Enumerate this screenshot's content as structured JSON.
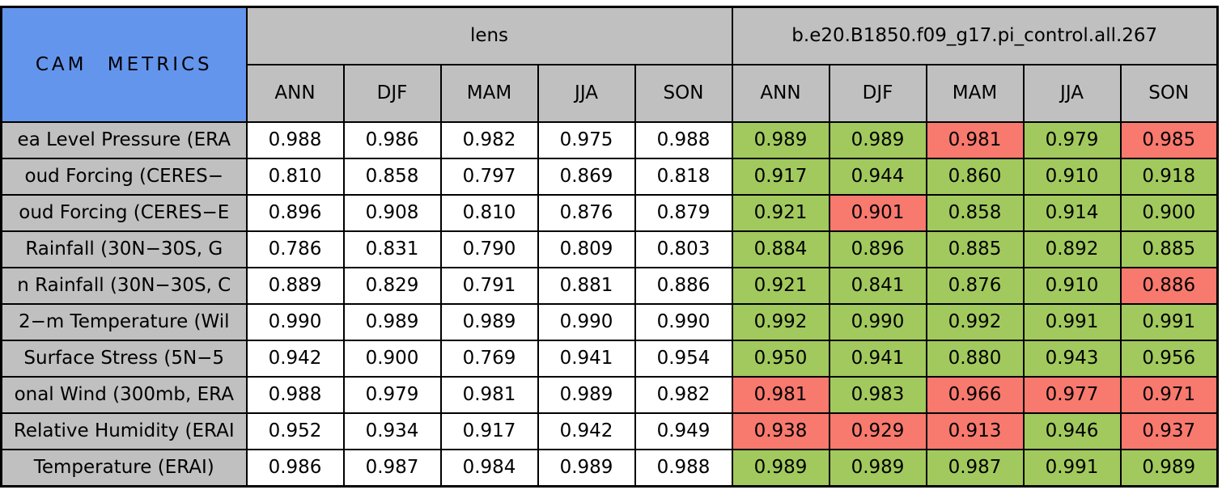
{
  "colors": {
    "header_blue": "#6495ED",
    "header_gray": "#C0C0C0",
    "good_green": "#A2C95D",
    "bad_red": "#F8796E",
    "cell_white": "#FFFFFF",
    "border_black": "#000000"
  },
  "chart_data": {
    "type": "table",
    "title": "CAM METRICS",
    "groups": [
      {
        "label": "lens"
      },
      {
        "label": "b.e20.B1850.f09_g17.pi_control.all.267"
      }
    ],
    "seasons": [
      "ANN",
      "DJF",
      "MAM",
      "JJA",
      "SON"
    ],
    "rows": [
      {
        "label": "ea Level Pressure (ERA",
        "lens": [
          "0.988",
          "0.986",
          "0.982",
          "0.975",
          "0.988"
        ],
        "control": [
          "0.989",
          "0.989",
          "0.981",
          "0.979",
          "0.985"
        ],
        "control_status": [
          "good",
          "good",
          "bad",
          "good",
          "bad"
        ]
      },
      {
        "label": "oud Forcing (CERES−",
        "lens": [
          "0.810",
          "0.858",
          "0.797",
          "0.869",
          "0.818"
        ],
        "control": [
          "0.917",
          "0.944",
          "0.860",
          "0.910",
          "0.918"
        ],
        "control_status": [
          "good",
          "good",
          "good",
          "good",
          "good"
        ]
      },
      {
        "label": "oud Forcing (CERES−E",
        "lens": [
          "0.896",
          "0.908",
          "0.810",
          "0.876",
          "0.879"
        ],
        "control": [
          "0.921",
          "0.901",
          "0.858",
          "0.914",
          "0.900"
        ],
        "control_status": [
          "good",
          "bad",
          "good",
          "good",
          "good"
        ]
      },
      {
        "label": "Rainfall (30N−30S, G",
        "lens": [
          "0.786",
          "0.831",
          "0.790",
          "0.809",
          "0.803"
        ],
        "control": [
          "0.884",
          "0.896",
          "0.885",
          "0.892",
          "0.885"
        ],
        "control_status": [
          "good",
          "good",
          "good",
          "good",
          "good"
        ]
      },
      {
        "label": "n Rainfall (30N−30S, C",
        "lens": [
          "0.889",
          "0.829",
          "0.791",
          "0.881",
          "0.886"
        ],
        "control": [
          "0.921",
          "0.841",
          "0.876",
          "0.910",
          "0.886"
        ],
        "control_status": [
          "good",
          "good",
          "good",
          "good",
          "bad"
        ]
      },
      {
        "label": "2−m Temperature (Wil",
        "lens": [
          "0.990",
          "0.989",
          "0.989",
          "0.990",
          "0.990"
        ],
        "control": [
          "0.992",
          "0.990",
          "0.992",
          "0.991",
          "0.991"
        ],
        "control_status": [
          "good",
          "good",
          "good",
          "good",
          "good"
        ]
      },
      {
        "label": "Surface Stress (5N−5",
        "lens": [
          "0.942",
          "0.900",
          "0.769",
          "0.941",
          "0.954"
        ],
        "control": [
          "0.950",
          "0.941",
          "0.880",
          "0.943",
          "0.956"
        ],
        "control_status": [
          "good",
          "good",
          "good",
          "good",
          "good"
        ]
      },
      {
        "label": "onal Wind (300mb, ERA",
        "lens": [
          "0.988",
          "0.979",
          "0.981",
          "0.989",
          "0.982"
        ],
        "control": [
          "0.981",
          "0.983",
          "0.966",
          "0.977",
          "0.971"
        ],
        "control_status": [
          "bad",
          "good",
          "bad",
          "bad",
          "bad"
        ]
      },
      {
        "label": "Relative Humidity (ERAI",
        "lens": [
          "0.952",
          "0.934",
          "0.917",
          "0.942",
          "0.949"
        ],
        "control": [
          "0.938",
          "0.929",
          "0.913",
          "0.946",
          "0.937"
        ],
        "control_status": [
          "bad",
          "bad",
          "bad",
          "good",
          "bad"
        ]
      },
      {
        "label": "Temperature (ERAI)",
        "lens": [
          "0.986",
          "0.987",
          "0.984",
          "0.989",
          "0.988"
        ],
        "control": [
          "0.989",
          "0.989",
          "0.987",
          "0.991",
          "0.989"
        ],
        "control_status": [
          "good",
          "good",
          "good",
          "good",
          "good"
        ]
      }
    ]
  }
}
